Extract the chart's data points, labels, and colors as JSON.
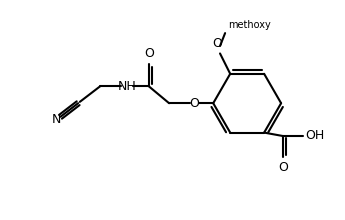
{
  "bg_color": "#ffffff",
  "line_color": "#000000",
  "line_width": 1.5,
  "figsize": [
    3.45,
    2.2
  ],
  "dpi": 100,
  "xlim": [
    0,
    10
  ],
  "ylim": [
    0,
    6.4
  ]
}
